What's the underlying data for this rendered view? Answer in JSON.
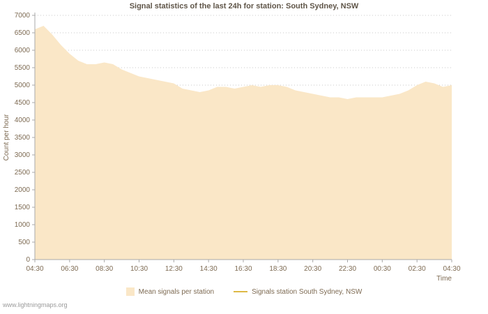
{
  "title": "Signal statistics of the last 24h for station: South Sydney, NSW",
  "footer": "www.lightningmaps.org",
  "colors": {
    "area_fill": "#fae7c7",
    "station_line": "#ddb945",
    "text": "#7d6a52",
    "title": "#5f5548",
    "grid": "#c8c8c8",
    "axis": "#a8a8a8",
    "footer": "#9a9a9a",
    "background": "#ffffff"
  },
  "legend": [
    {
      "label": "Mean signals per station",
      "type": "area",
      "color": "#fae7c7"
    },
    {
      "label": "Signals station South Sydney, NSW",
      "type": "line",
      "color": "#ddb945"
    }
  ],
  "chart_data": {
    "type": "area",
    "title": "Signal statistics of the last 24h for station: South Sydney, NSW",
    "xlabel": "Time",
    "ylabel": "Count per hour",
    "ylim": [
      0,
      7000
    ],
    "ytick_step": 500,
    "grid": "horizontal-dotted",
    "legend_position": "bottom-center",
    "x_tick_labels": [
      "04:30",
      "06:30",
      "08:30",
      "10:30",
      "12:30",
      "14:30",
      "16:30",
      "18:30",
      "20:30",
      "22:30",
      "00:30",
      "02:30",
      "04:30"
    ],
    "x_times": [
      "04:30",
      "05:00",
      "05:30",
      "06:00",
      "06:30",
      "07:00",
      "07:30",
      "08:00",
      "08:30",
      "09:00",
      "09:30",
      "10:00",
      "10:30",
      "11:00",
      "11:30",
      "12:00",
      "12:30",
      "13:00",
      "13:30",
      "14:00",
      "14:30",
      "15:00",
      "15:30",
      "16:00",
      "16:30",
      "17:00",
      "17:30",
      "18:00",
      "18:30",
      "19:00",
      "19:30",
      "20:00",
      "20:30",
      "21:00",
      "21:30",
      "22:00",
      "22:30",
      "23:00",
      "23:30",
      "00:00",
      "00:30",
      "01:00",
      "01:30",
      "02:00",
      "02:30",
      "03:00",
      "03:30",
      "04:00",
      "04:30"
    ],
    "series": [
      {
        "name": "Mean signals per station",
        "style": "area",
        "color": "#fae7c7",
        "values": [
          6600,
          6700,
          6450,
          6150,
          5900,
          5700,
          5600,
          5600,
          5650,
          5600,
          5450,
          5350,
          5250,
          5200,
          5150,
          5100,
          5050,
          4900,
          4850,
          4800,
          4850,
          4950,
          4950,
          4900,
          4950,
          5000,
          4950,
          5000,
          5000,
          4950,
          4850,
          4800,
          4750,
          4700,
          4650,
          4650,
          4600,
          4650,
          4650,
          4650,
          4650,
          4700,
          4750,
          4850,
          5000,
          5100,
          5050,
          4950,
          5000
        ]
      },
      {
        "name": "Signals station South Sydney, NSW",
        "style": "line",
        "color": "#ddb945",
        "values": []
      }
    ]
  }
}
